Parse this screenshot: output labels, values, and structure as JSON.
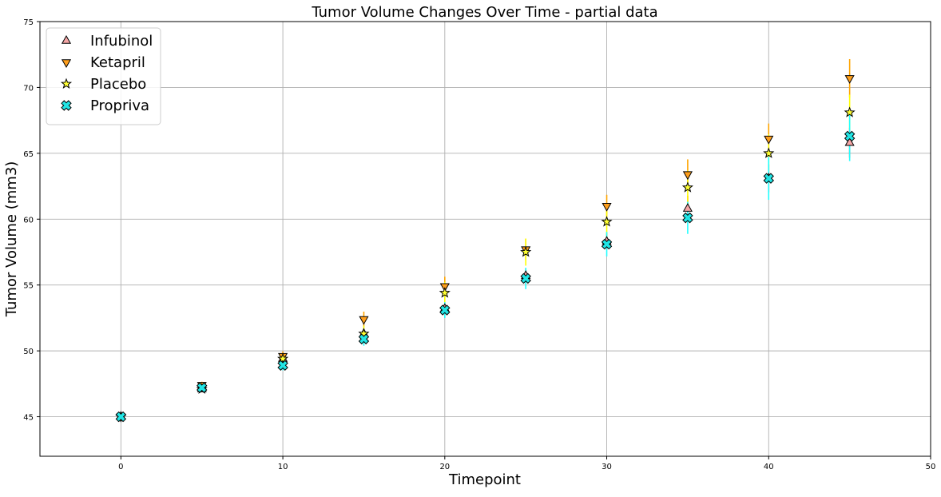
{
  "chart_data": {
    "type": "scatter",
    "title": "Tumor Volume Changes Over Time - partial data",
    "xlabel": "Timepoint",
    "ylabel": "Tumor Volume (mm3)",
    "xlim": [
      -5,
      50
    ],
    "ylim": [
      42,
      75
    ],
    "xticks": [
      0,
      10,
      20,
      30,
      40,
      50
    ],
    "yticks": [
      45,
      50,
      55,
      60,
      65,
      70,
      75
    ],
    "grid": true,
    "legend_position": "top-left",
    "x": [
      0,
      5,
      10,
      15,
      20,
      25,
      30,
      35,
      40,
      45
    ],
    "series": [
      {
        "name": "Infubinol",
        "marker": "triangle-up",
        "color": "#f4a6a6",
        "error_color": "#ff2020",
        "values": [
          45.0,
          47.1,
          49.4,
          51.3,
          53.2,
          55.7,
          58.3,
          60.8,
          63.1,
          65.8
        ],
        "errors": [
          0.0,
          0.24,
          0.28,
          0.36,
          0.48,
          0.55,
          0.63,
          0.98,
          1.06,
          1.14
        ]
      },
      {
        "name": "Ketapril",
        "marker": "triangle-down",
        "color": "#ff9f1c",
        "error_color": "#ffa500",
        "values": [
          45.0,
          47.4,
          49.6,
          52.4,
          54.9,
          57.7,
          61.0,
          63.4,
          66.1,
          70.7
        ],
        "errors": [
          0.0,
          0.26,
          0.36,
          0.58,
          0.73,
          0.79,
          0.85,
          1.14,
          1.16,
          1.45
        ]
      },
      {
        "name": "Placebo",
        "marker": "star",
        "color": "#ffff33",
        "error_color": "#ffff00",
        "values": [
          45.0,
          47.1,
          49.4,
          51.3,
          54.4,
          57.5,
          59.8,
          62.4,
          65.0,
          68.1
        ],
        "errors": [
          0.0,
          0.22,
          0.4,
          0.61,
          0.84,
          1.03,
          1.22,
          1.29,
          1.44,
          1.35
        ]
      },
      {
        "name": "Propriva",
        "marker": "x-filled",
        "color": "#22e5e5",
        "error_color": "#22ffff",
        "values": [
          45.0,
          47.2,
          48.9,
          50.9,
          53.1,
          55.5,
          58.1,
          60.1,
          63.1,
          66.3
        ],
        "errors": [
          0.0,
          0.23,
          0.38,
          0.51,
          0.6,
          0.81,
          0.93,
          1.22,
          1.63,
          1.89
        ]
      }
    ]
  }
}
